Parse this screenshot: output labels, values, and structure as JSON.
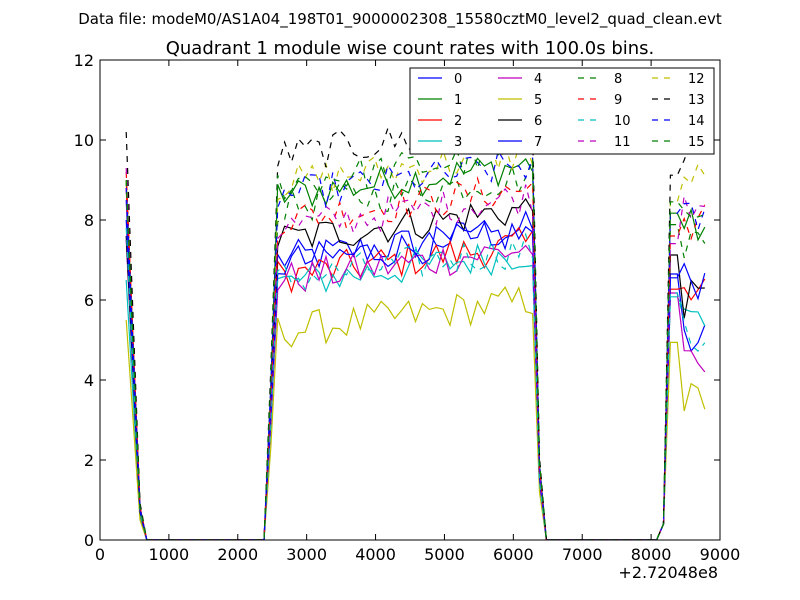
{
  "chart_data": {
    "type": "line",
    "suptitle": "Data file: modeM0/AS1A04_198T01_9000002308_15580cztM0_level2_quad_clean.evt",
    "title": "Quadrant 1 module wise count rates with 100.0s bins.",
    "xlabel": "",
    "ylabel": "",
    "x_offset_label": "+2.72048e8",
    "xlim": [
      0,
      9000
    ],
    "ylim": [
      0,
      12
    ],
    "xticks": [
      "0",
      "1000",
      "2000",
      "3000",
      "4000",
      "5000",
      "6000",
      "7000",
      "8000",
      "9000"
    ],
    "yticks": [
      "0",
      "2",
      "4",
      "6",
      "8",
      "10",
      "12"
    ],
    "legend_position": "top-right",
    "bin_seconds": 100,
    "gap_ranges": [
      [
        600,
        2400
      ],
      [
        6400,
        8200
      ]
    ],
    "series": [
      {
        "name": "0",
        "color": "#0000ff",
        "dash": "solid",
        "base": 7.0,
        "start": 8.5,
        "end": 5.0
      },
      {
        "name": "1",
        "color": "#008000",
        "dash": "solid",
        "base": 8.6,
        "start": 9.0,
        "end": 7.8
      },
      {
        "name": "2",
        "color": "#ff0000",
        "dash": "solid",
        "base": 6.6,
        "start": 8.8,
        "end": 6.5
      },
      {
        "name": "3",
        "color": "#00bfbf",
        "dash": "solid",
        "base": 6.4,
        "start": 6.5,
        "end": 5.5
      },
      {
        "name": "4",
        "color": "#bf00bf",
        "dash": "solid",
        "base": 6.5,
        "start": 7.5,
        "end": 4.3
      },
      {
        "name": "5",
        "color": "#bfbf00",
        "dash": "solid",
        "base": 5.2,
        "start": 5.5,
        "end": 3.5
      },
      {
        "name": "6",
        "color": "#000000",
        "dash": "solid",
        "base": 7.5,
        "start": 7.6,
        "end": 6.0
      },
      {
        "name": "7",
        "color": "#0000ff",
        "dash": "solid",
        "base": 6.9,
        "start": 8.0,
        "end": 6.5
      },
      {
        "name": "8",
        "color": "#008000",
        "dash": "dashed",
        "base": 8.3,
        "start": 9.0,
        "end": 7.5
      },
      {
        "name": "9",
        "color": "#ff0000",
        "dash": "dashed",
        "base": 8.0,
        "start": 9.2,
        "end": 8.0
      },
      {
        "name": "10",
        "color": "#00bfbf",
        "dash": "dashed",
        "base": 6.5,
        "start": 7.8,
        "end": 5.0
      },
      {
        "name": "11",
        "color": "#bf00bf",
        "dash": "dashed",
        "base": 7.8,
        "start": 9.3,
        "end": 8.5
      },
      {
        "name": "12",
        "color": "#bfbf00",
        "dash": "dashed",
        "base": 8.9,
        "start": 9.0,
        "end": 9.0
      },
      {
        "name": "13",
        "color": "#000000",
        "dash": "dashed",
        "base": 9.6,
        "start": 10.2,
        "end": 9.5
      },
      {
        "name": "14",
        "color": "#0000ff",
        "dash": "dashed",
        "base": 8.6,
        "start": 8.8,
        "end": 8.0
      },
      {
        "name": "15",
        "color": "#008000",
        "dash": "dashed",
        "base": 8.9,
        "start": 9.0,
        "end": 8.5
      }
    ]
  }
}
